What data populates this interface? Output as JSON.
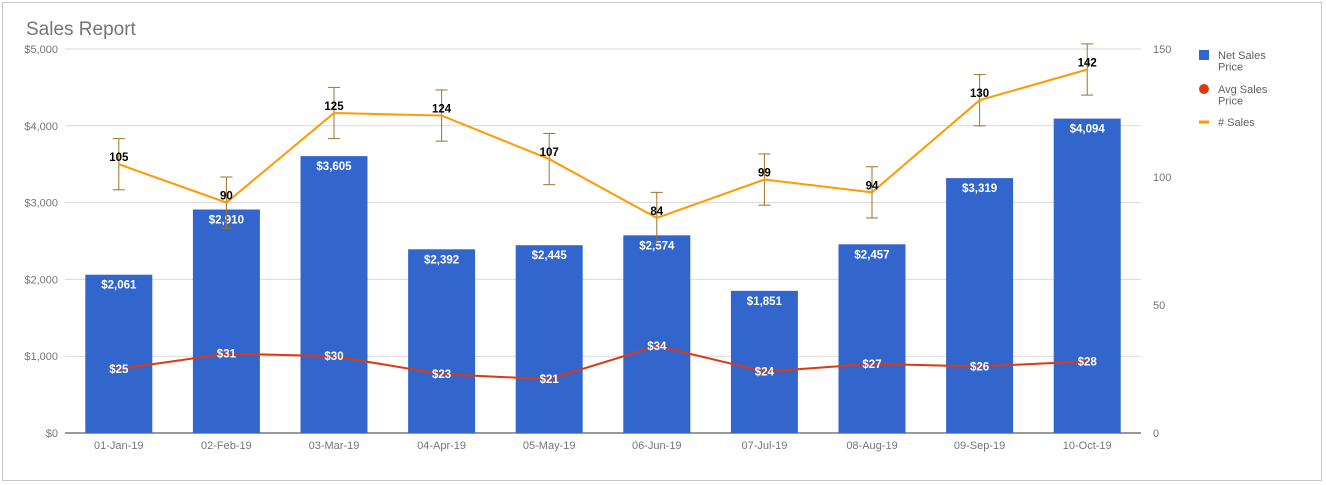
{
  "chart_data": {
    "type": "bar",
    "title": "Sales Report",
    "categories": [
      "01-Jan-19",
      "02-Feb-19",
      "03-Mar-19",
      "04-Apr-19",
      "05-May-19",
      "06-Jun-19",
      "07-Jul-19",
      "08-Aug-19",
      "09-Sep-19",
      "10-Oct-19"
    ],
    "series": [
      {
        "name": "Net Sales Price",
        "type": "bar",
        "axis": "left",
        "color": "#3366cc",
        "values": [
          2061,
          2910,
          3605,
          2392,
          2445,
          2574,
          1851,
          2457,
          3319,
          4094
        ],
        "labels": [
          "$2,061",
          "$2,910",
          "$3,605",
          "$2,392",
          "$2,445",
          "$2,574",
          "$1,851",
          "$2,457",
          "$3,319",
          "$4,094"
        ]
      },
      {
        "name": "Avg Sales Price",
        "type": "line",
        "axis": "right",
        "color": "#dc3912",
        "values": [
          25,
          31,
          30,
          23,
          21,
          34,
          24,
          27,
          26,
          28
        ],
        "labels": [
          "$25",
          "$31",
          "$30",
          "$23",
          "$21",
          "$34",
          "$24",
          "$27",
          "$26",
          "$28"
        ]
      },
      {
        "name": "# Sales",
        "type": "line",
        "axis": "right",
        "color": "#ff9900",
        "values": [
          105,
          90,
          125,
          124,
          107,
          84,
          99,
          94,
          130,
          142
        ],
        "labels": [
          "105",
          "90",
          "125",
          "124",
          "107",
          "84",
          "99",
          "94",
          "130",
          "142"
        ],
        "error_bars": {
          "color": "#a0702a",
          "minus": 10,
          "plus": 10
        }
      }
    ],
    "y_left": {
      "range": [
        0,
        5000
      ],
      "ticks": [
        0,
        1000,
        2000,
        3000,
        4000,
        5000
      ],
      "tick_labels": [
        "$0",
        "$1,000",
        "$2,000",
        "$3,000",
        "$4,000",
        "$5,000"
      ]
    },
    "y_right": {
      "range": [
        0,
        150
      ],
      "ticks": [
        0,
        50,
        100,
        150
      ],
      "tick_labels": [
        "0",
        "50",
        "100",
        "150"
      ]
    },
    "grid": true,
    "legend_position": "right",
    "legend": [
      {
        "label_lines": [
          "Net Sales",
          "Price"
        ],
        "marker": "square",
        "color": "#3366cc"
      },
      {
        "label_lines": [
          "Avg Sales",
          "Price"
        ],
        "marker": "circle",
        "color": "#dc3912"
      },
      {
        "label_lines": [
          "# Sales"
        ],
        "marker": "line",
        "color": "#ff9900"
      }
    ]
  }
}
